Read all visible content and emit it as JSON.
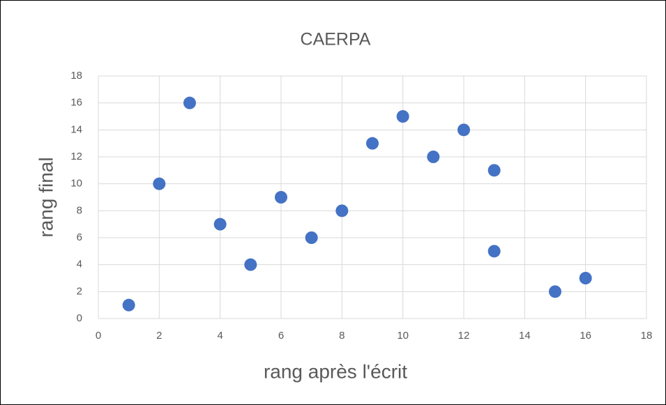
{
  "chart_data": {
    "type": "scatter",
    "title": "CAERPA",
    "x_label": "rang après l'écrit",
    "y_label": "rang final",
    "series": [
      {
        "color": "#4472c4",
        "x": [
          1,
          2,
          3,
          4,
          5,
          6,
          7,
          8,
          9,
          10,
          11,
          12,
          13,
          13,
          15,
          16
        ],
        "values": [
          1,
          10,
          16,
          7,
          4,
          9,
          6,
          8,
          13,
          15,
          12,
          14,
          11,
          5,
          2,
          3
        ]
      }
    ],
    "xlim": [
      0,
      18
    ],
    "xticks": [
      0,
      2,
      4,
      6,
      8,
      10,
      12,
      14,
      16,
      18
    ],
    "ylim": [
      0,
      18
    ],
    "yticks": [
      0,
      2,
      4,
      6,
      8,
      10,
      12,
      14,
      16,
      18
    ],
    "grid": true
  }
}
